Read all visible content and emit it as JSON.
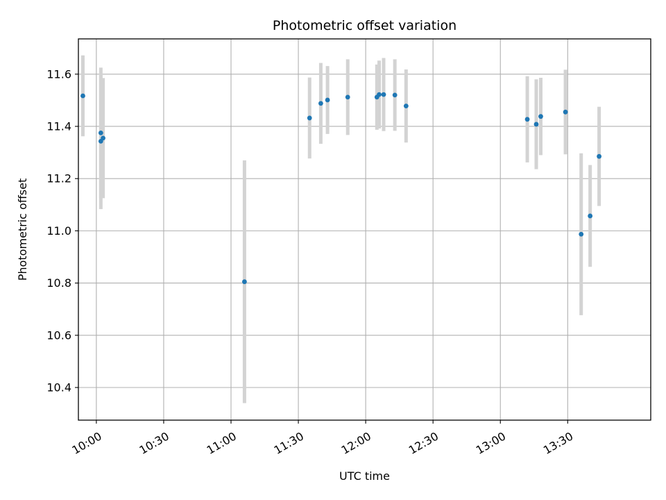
{
  "chart_data": {
    "type": "scatter",
    "title": "Photometric offset variation",
    "xlabel": "UTC time",
    "ylabel": "Photometric offset",
    "x_ticks": [
      "10:00",
      "10:30",
      "11:00",
      "11:30",
      "12:00",
      "12:30",
      "13:00",
      "13:30"
    ],
    "y_ticks": [
      "10.4",
      "10.6",
      "10.8",
      "11.0",
      "11.2",
      "11.4",
      "11.6"
    ],
    "xlim": [
      "09:52",
      "14:07"
    ],
    "ylim": [
      10.275,
      11.735
    ],
    "grid": true,
    "marker_color": "#1f77b4",
    "errorbar_color": "#d3d3d3",
    "series": [
      {
        "points": [
          {
            "x": "09:54",
            "y": 11.517,
            "err": 0.155
          },
          {
            "x": "10:02",
            "y": 11.375,
            "err": 0.25
          },
          {
            "x": "10:02",
            "y": 11.343,
            "err": 0.26
          },
          {
            "x": "10:03",
            "y": 11.355,
            "err": 0.23
          },
          {
            "x": "11:06",
            "y": 10.805,
            "err": 0.465
          },
          {
            "x": "11:35",
            "y": 11.432,
            "err": 0.155
          },
          {
            "x": "11:40",
            "y": 11.488,
            "err": 0.155
          },
          {
            "x": "11:43",
            "y": 11.501,
            "err": 0.13
          },
          {
            "x": "11:52",
            "y": 11.512,
            "err": 0.145
          },
          {
            "x": "12:05",
            "y": 11.512,
            "err": 0.125
          },
          {
            "x": "12:06",
            "y": 11.522,
            "err": 0.13
          },
          {
            "x": "12:08",
            "y": 11.522,
            "err": 0.14
          },
          {
            "x": "12:13",
            "y": 11.52,
            "err": 0.137
          },
          {
            "x": "12:18",
            "y": 11.478,
            "err": 0.14
          },
          {
            "x": "13:12",
            "y": 11.427,
            "err": 0.165
          },
          {
            "x": "13:16",
            "y": 11.408,
            "err": 0.172
          },
          {
            "x": "13:18",
            "y": 11.438,
            "err": 0.148
          },
          {
            "x": "13:29",
            "y": 11.455,
            "err": 0.162
          },
          {
            "x": "13:36",
            "y": 10.987,
            "err": 0.31
          },
          {
            "x": "13:40",
            "y": 11.057,
            "err": 0.195
          },
          {
            "x": "13:44",
            "y": 11.285,
            "err": 0.19
          }
        ]
      }
    ]
  }
}
